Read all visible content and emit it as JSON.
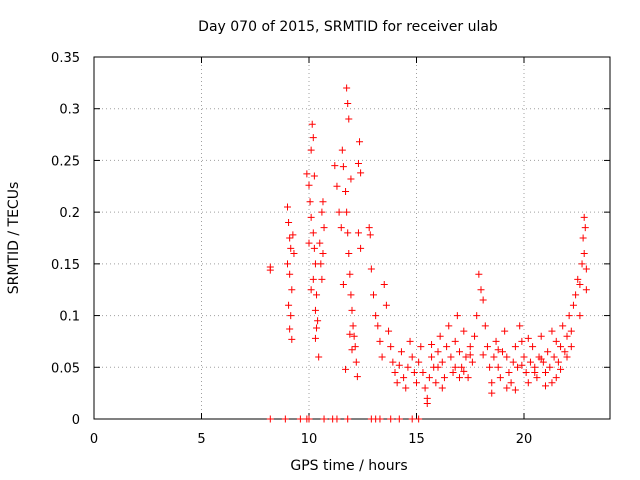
{
  "chart_data": {
    "type": "scatter",
    "title": "Day 070 of 2015, SRMTID for receiver ulab",
    "xlabel": "GPS time / hours",
    "ylabel": "SRMTID / TECUs",
    "xlim": [
      0,
      24
    ],
    "ylim": [
      0,
      0.35
    ],
    "grid": true,
    "xticks": [
      0,
      5,
      10,
      15,
      20
    ],
    "xtick_labels": [
      "0",
      "5",
      "10",
      "15",
      "20"
    ],
    "yticks": [
      0,
      0.05,
      0.1,
      0.15,
      0.2,
      0.25,
      0.3,
      0.35
    ],
    "ytick_labels": [
      "0",
      "0.05",
      "0.1",
      "0.15",
      "0.2",
      "0.25",
      "0.3",
      "0.35"
    ],
    "marker": "+",
    "series": [
      {
        "name": "SRMTID",
        "color": "#ff0000",
        "points": [
          [
            8.2,
            0.147
          ],
          [
            8.2,
            0.144
          ],
          [
            9.0,
            0.205
          ],
          [
            9.05,
            0.19
          ],
          [
            9.1,
            0.175
          ],
          [
            9.15,
            0.165
          ],
          [
            9.0,
            0.15
          ],
          [
            9.1,
            0.14
          ],
          [
            9.2,
            0.125
          ],
          [
            9.05,
            0.11
          ],
          [
            9.15,
            0.1
          ],
          [
            9.1,
            0.087
          ],
          [
            9.2,
            0.077
          ],
          [
            9.25,
            0.178
          ],
          [
            9.3,
            0.16
          ],
          [
            9.9,
            0.237
          ],
          [
            10.0,
            0.226
          ],
          [
            10.05,
            0.21
          ],
          [
            10.1,
            0.26
          ],
          [
            10.15,
            0.285
          ],
          [
            10.2,
            0.272
          ],
          [
            10.1,
            0.195
          ],
          [
            10.2,
            0.18
          ],
          [
            10.25,
            0.165
          ],
          [
            10.3,
            0.15
          ],
          [
            10.2,
            0.135
          ],
          [
            10.35,
            0.12
          ],
          [
            10.3,
            0.105
          ],
          [
            10.4,
            0.095
          ],
          [
            10.35,
            0.088
          ],
          [
            10.3,
            0.078
          ],
          [
            10.45,
            0.06
          ],
          [
            10.5,
            0.17
          ],
          [
            10.55,
            0.15
          ],
          [
            10.6,
            0.135
          ],
          [
            10.65,
            0.21
          ],
          [
            10.6,
            0.2
          ],
          [
            10.7,
            0.185
          ],
          [
            10.65,
            0.16
          ],
          [
            10.0,
            0.17
          ],
          [
            10.1,
            0.125
          ],
          [
            10.25,
            0.235
          ],
          [
            11.2,
            0.245
          ],
          [
            11.3,
            0.225
          ],
          [
            11.4,
            0.2
          ],
          [
            11.5,
            0.185
          ],
          [
            11.55,
            0.26
          ],
          [
            11.6,
            0.244
          ],
          [
            11.7,
            0.22
          ],
          [
            11.75,
            0.32
          ],
          [
            11.8,
            0.305
          ],
          [
            11.85,
            0.29
          ],
          [
            11.75,
            0.2
          ],
          [
            11.8,
            0.18
          ],
          [
            11.85,
            0.16
          ],
          [
            11.9,
            0.14
          ],
          [
            11.95,
            0.12
          ],
          [
            12.0,
            0.105
          ],
          [
            12.05,
            0.09
          ],
          [
            12.1,
            0.08
          ],
          [
            12.15,
            0.07
          ],
          [
            12.2,
            0.055
          ],
          [
            12.25,
            0.041
          ],
          [
            12.3,
            0.247
          ],
          [
            12.35,
            0.268
          ],
          [
            12.4,
            0.238
          ],
          [
            12.3,
            0.18
          ],
          [
            12.4,
            0.165
          ],
          [
            11.9,
            0.082
          ],
          [
            12.0,
            0.067
          ],
          [
            11.7,
            0.048
          ],
          [
            11.6,
            0.13
          ],
          [
            11.95,
            0.232
          ],
          [
            12.8,
            0.185
          ],
          [
            12.85,
            0.178
          ],
          [
            12.9,
            0.145
          ],
          [
            13.0,
            0.12
          ],
          [
            13.1,
            0.1
          ],
          [
            13.2,
            0.09
          ],
          [
            13.3,
            0.075
          ],
          [
            13.4,
            0.06
          ],
          [
            13.5,
            0.13
          ],
          [
            13.6,
            0.11
          ],
          [
            13.7,
            0.085
          ],
          [
            13.8,
            0.07
          ],
          [
            13.9,
            0.055
          ],
          [
            14.0,
            0.045
          ],
          [
            14.1,
            0.035
          ],
          [
            14.2,
            0.052
          ],
          [
            14.3,
            0.065
          ],
          [
            14.4,
            0.04
          ],
          [
            14.5,
            0.03
          ],
          [
            14.6,
            0.05
          ],
          [
            14.7,
            0.075
          ],
          [
            14.8,
            0.06
          ],
          [
            14.9,
            0.045
          ],
          [
            15.0,
            0.035
          ],
          [
            15.1,
            0.055
          ],
          [
            15.2,
            0.07
          ],
          [
            15.3,
            0.045
          ],
          [
            15.4,
            0.03
          ],
          [
            15.5,
            0.015
          ],
          [
            15.6,
            0.04
          ],
          [
            15.7,
            0.06
          ],
          [
            15.8,
            0.05
          ],
          [
            15.9,
            0.035
          ],
          [
            16.0,
            0.065
          ],
          [
            16.1,
            0.08
          ],
          [
            16.2,
            0.055
          ],
          [
            16.3,
            0.04
          ],
          [
            16.4,
            0.07
          ],
          [
            16.5,
            0.09
          ],
          [
            16.6,
            0.06
          ],
          [
            16.7,
            0.045
          ],
          [
            16.8,
            0.075
          ],
          [
            16.9,
            0.1
          ],
          [
            17.0,
            0.065
          ],
          [
            17.1,
            0.05
          ],
          [
            17.2,
            0.085
          ],
          [
            17.3,
            0.06
          ],
          [
            17.4,
            0.04
          ],
          [
            17.5,
            0.07
          ],
          [
            17.6,
            0.055
          ],
          [
            17.7,
            0.08
          ],
          [
            17.8,
            0.1
          ],
          [
            17.9,
            0.14
          ],
          [
            18.0,
            0.125
          ],
          [
            18.1,
            0.115
          ],
          [
            18.2,
            0.09
          ],
          [
            18.3,
            0.07
          ],
          [
            18.4,
            0.05
          ],
          [
            18.5,
            0.035
          ],
          [
            18.6,
            0.06
          ],
          [
            18.7,
            0.075
          ],
          [
            18.8,
            0.05
          ],
          [
            18.9,
            0.04
          ],
          [
            19.0,
            0.065
          ],
          [
            19.1,
            0.085
          ],
          [
            19.2,
            0.06
          ],
          [
            19.3,
            0.045
          ],
          [
            19.4,
            0.035
          ],
          [
            19.5,
            0.055
          ],
          [
            19.6,
            0.07
          ],
          [
            19.7,
            0.05
          ],
          [
            19.8,
            0.09
          ],
          [
            19.9,
            0.075
          ],
          [
            20.0,
            0.06
          ],
          [
            20.1,
            0.045
          ],
          [
            20.2,
            0.035
          ],
          [
            20.3,
            0.055
          ],
          [
            20.4,
            0.07
          ],
          [
            20.5,
            0.05
          ],
          [
            20.6,
            0.04
          ],
          [
            20.7,
            0.06
          ],
          [
            20.8,
            0.08
          ],
          [
            20.9,
            0.055
          ],
          [
            21.0,
            0.045
          ],
          [
            21.1,
            0.065
          ],
          [
            21.2,
            0.05
          ],
          [
            21.3,
            0.035
          ],
          [
            21.4,
            0.06
          ],
          [
            21.5,
            0.075
          ],
          [
            21.6,
            0.055
          ],
          [
            21.7,
            0.07
          ],
          [
            21.8,
            0.09
          ],
          [
            21.9,
            0.065
          ],
          [
            22.0,
            0.08
          ],
          [
            22.1,
            0.1
          ],
          [
            22.2,
            0.085
          ],
          [
            22.3,
            0.11
          ],
          [
            22.4,
            0.12
          ],
          [
            22.5,
            0.135
          ],
          [
            22.6,
            0.13
          ],
          [
            22.7,
            0.15
          ],
          [
            22.75,
            0.175
          ],
          [
            22.8,
            0.195
          ],
          [
            22.85,
            0.185
          ],
          [
            22.8,
            0.16
          ],
          [
            22.9,
            0.145
          ],
          [
            15.5,
            0.02
          ],
          [
            16.2,
            0.03
          ],
          [
            17.0,
            0.04
          ],
          [
            18.5,
            0.025
          ],
          [
            19.2,
            0.03
          ],
          [
            19.6,
            0.028
          ],
          [
            20.5,
            0.045
          ],
          [
            21.0,
            0.032
          ],
          [
            21.5,
            0.04
          ],
          [
            22.0,
            0.06
          ],
          [
            16.0,
            0.05
          ],
          [
            16.8,
            0.05
          ],
          [
            17.5,
            0.062
          ],
          [
            18.8,
            0.067
          ],
          [
            19.9,
            0.052
          ],
          [
            20.8,
            0.058
          ],
          [
            21.7,
            0.048
          ],
          [
            15.7,
            0.072
          ],
          [
            17.2,
            0.046
          ],
          [
            18.1,
            0.062
          ],
          [
            20.2,
            0.078
          ],
          [
            21.3,
            0.085
          ],
          [
            22.2,
            0.07
          ],
          [
            22.6,
            0.1
          ],
          [
            22.9,
            0.125
          ],
          [
            8.2,
            0.0
          ],
          [
            8.9,
            0.0
          ],
          [
            9.6,
            0.0
          ],
          [
            9.9,
            0.0
          ],
          [
            10.0,
            0.0
          ],
          [
            10.7,
            0.0
          ],
          [
            11.1,
            0.0
          ],
          [
            11.3,
            0.0
          ],
          [
            11.8,
            0.0
          ],
          [
            12.9,
            0.0
          ],
          [
            13.1,
            0.0
          ],
          [
            13.3,
            0.0
          ],
          [
            13.8,
            0.0
          ],
          [
            14.2,
            0.0
          ],
          [
            14.8,
            0.0
          ],
          [
            15.1,
            0.0
          ]
        ]
      }
    ]
  }
}
